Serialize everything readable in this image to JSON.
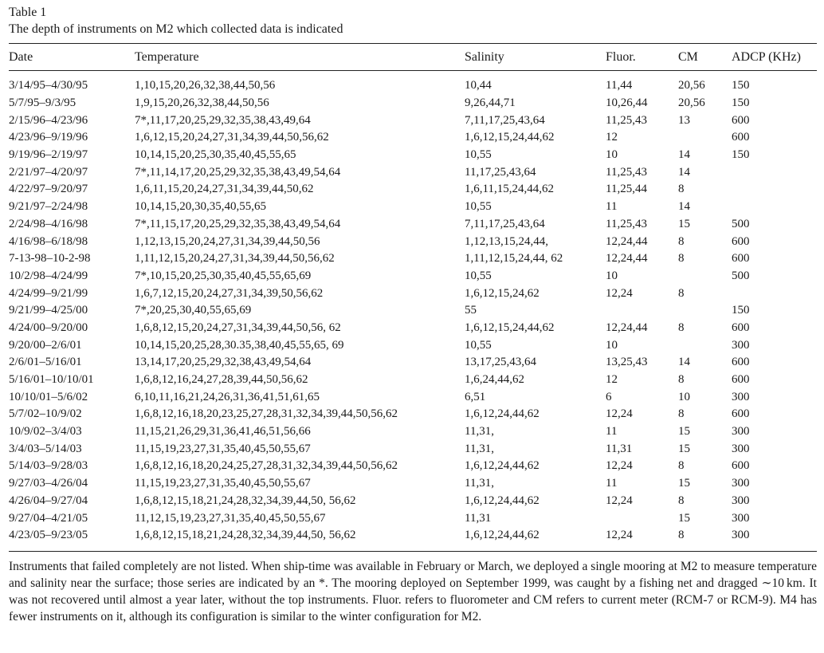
{
  "caption": {
    "label": "Table 1",
    "title": "The depth of instruments on M2 which collected data is indicated"
  },
  "columns": [
    "Date",
    "Temperature",
    "Salinity",
    "Fluor.",
    "CM",
    "ADCP (KHz)"
  ],
  "rows": [
    [
      "3/14/95–4/30/95",
      "1,10,15,20,26,32,38,44,50,56",
      "10,44",
      "11,44",
      "20,56",
      "150"
    ],
    [
      "5/7/95–9/3/95",
      "1,9,15,20,26,32,38,44,50,56",
      "9,26,44,71",
      "10,26,44",
      "20,56",
      "150"
    ],
    [
      "2/15/96–4/23/96",
      "7*,11,17,20,25,29,32,35,38,43,49,64",
      "7,11,17,25,43,64",
      "11,25,43",
      "13",
      "600"
    ],
    [
      "4/23/96–9/19/96",
      "1,6,12,15,20,24,27,31,34,39,44,50,56,62",
      "1,6,12,15,24,44,62",
      "12",
      "",
      "600"
    ],
    [
      "9/19/96–2/19/97",
      "10,14,15,20,25,30,35,40,45,55,65",
      "10,55",
      "10",
      "14",
      "150"
    ],
    [
      "2/21/97–4/20/97",
      "7*,11,14,17,20,25,29,32,35,38,43,49,54,64",
      "11,17,25,43,64",
      "11,25,43",
      "14",
      ""
    ],
    [
      "4/22/97–9/20/97",
      "1,6,11,15,20,24,27,31,34,39,44,50,62",
      "1,6,11,15,24,44,62",
      "11,25,44",
      "8",
      ""
    ],
    [
      "9/21/97–2/24/98",
      "10,14,15,20,30,35,40,55,65",
      "10,55",
      "11",
      "14",
      ""
    ],
    [
      "2/24/98–4/16/98",
      "7*,11,15,17,20,25,29,32,35,38,43,49,54,64",
      "7,11,17,25,43,64",
      "11,25,43",
      "15",
      "500"
    ],
    [
      "4/16/98–6/18/98",
      "1,12,13,15,20,24,27,31,34,39,44,50,56",
      "1,12,13,15,24,44,",
      "12,24,44",
      "8",
      "600"
    ],
    [
      "7-13-98–10-2-98",
      "1,11,12,15,20,24,27,31,34,39,44,50,56,62",
      "1,11,12,15,24,44, 62",
      "12,24,44",
      "8",
      "600"
    ],
    [
      "10/2/98–4/24/99",
      "7*,10,15,20,25,30,35,40,45,55,65,69",
      "10,55",
      "10",
      "",
      "500"
    ],
    [
      "4/24/99–9/21/99",
      "1,6,7,12,15,20,24,27,31,34,39,50,56,62",
      "1,6,12,15,24,62",
      "12,24",
      "8",
      ""
    ],
    [
      "9/21/99–4/25/00",
      "7*,20,25,30,40,55,65,69",
      "55",
      "",
      "",
      "150"
    ],
    [
      "4/24/00–9/20/00",
      "1,6,8,12,15,20,24,27,31,34,39,44,50,56, 62",
      "1,6,12,15,24,44,62",
      "12,24,44",
      "8",
      "600"
    ],
    [
      "9/20/00–2/6/01",
      "10,14,15,20,25,28,30.35,38,40,45,55,65, 69",
      "10,55",
      "10",
      "",
      "300"
    ],
    [
      "2/6/01–5/16/01",
      "13,14,17,20,25,29,32,38,43,49,54,64",
      "13,17,25,43,64",
      "13,25,43",
      "14",
      "600"
    ],
    [
      "5/16/01–10/10/01",
      "1,6,8,12,16,24,27,28,39,44,50,56,62",
      "1,6,24,44,62",
      "12",
      "8",
      "600"
    ],
    [
      "10/10/01–5/6/02",
      "6,10,11,16,21,24,26,31,36,41,51,61,65",
      "6,51",
      "6",
      "10",
      "300"
    ],
    [
      "5/7/02–10/9/02",
      "1,6,8,12,16,18,20,23,25,27,28,31,32,34,39,44,50,56,62",
      "1,6,12,24,44,62",
      "12,24",
      "8",
      "600"
    ],
    [
      "10/9/02–3/4/03",
      "11,15,21,26,29,31,36,41,46,51,56,66",
      "11,31,",
      "11",
      "15",
      "300"
    ],
    [
      "3/4/03–5/14/03",
      "11,15,19,23,27,31,35,40,45,50,55,67",
      "11,31,",
      "11,31",
      "15",
      "300"
    ],
    [
      "5/14/03–9/28/03",
      "1,6,8,12,16,18,20,24,25,27,28,31,32,34,39,44,50,56,62",
      "1,6,12,24,44,62",
      "12,24",
      "8",
      "600"
    ],
    [
      "9/27/03–4/26/04",
      "11,15,19,23,27,31,35,40,45,50,55,67",
      "11,31,",
      "11",
      "15",
      "300"
    ],
    [
      "4/26/04–9/27/04",
      "1,6,8,12,15,18,21,24,28,32,34,39,44,50, 56,62",
      "1,6,12,24,44,62",
      "12,24",
      "8",
      "300"
    ],
    [
      "9/27/04–4/21/05",
      "11,12,15,19,23,27,31,35,40,45,50,55,67",
      "11,31",
      "",
      "15",
      "300"
    ],
    [
      "4/23/05–9/23/05",
      "1,6,8,12,15,18,21,24,28,32,34,39,44,50, 56,62",
      "1,6,12,24,44,62",
      "12,24",
      "8",
      "300"
    ]
  ],
  "footnote": "Instruments that failed completely are not listed. When ship-time was available in February or March, we deployed a single mooring at M2 to measure temperature and salinity near the surface; those series are indicated by an *. The mooring deployed on September 1999, was caught by a fishing net and dragged ∼10 km. It was not recovered until almost a year later, without the top instruments. Fluor. refers to fluorometer and CM refers to current meter (RCM-7 or RCM-9). M4 has fewer instruments on it, although its configuration is similar to the winter configuration for M2."
}
